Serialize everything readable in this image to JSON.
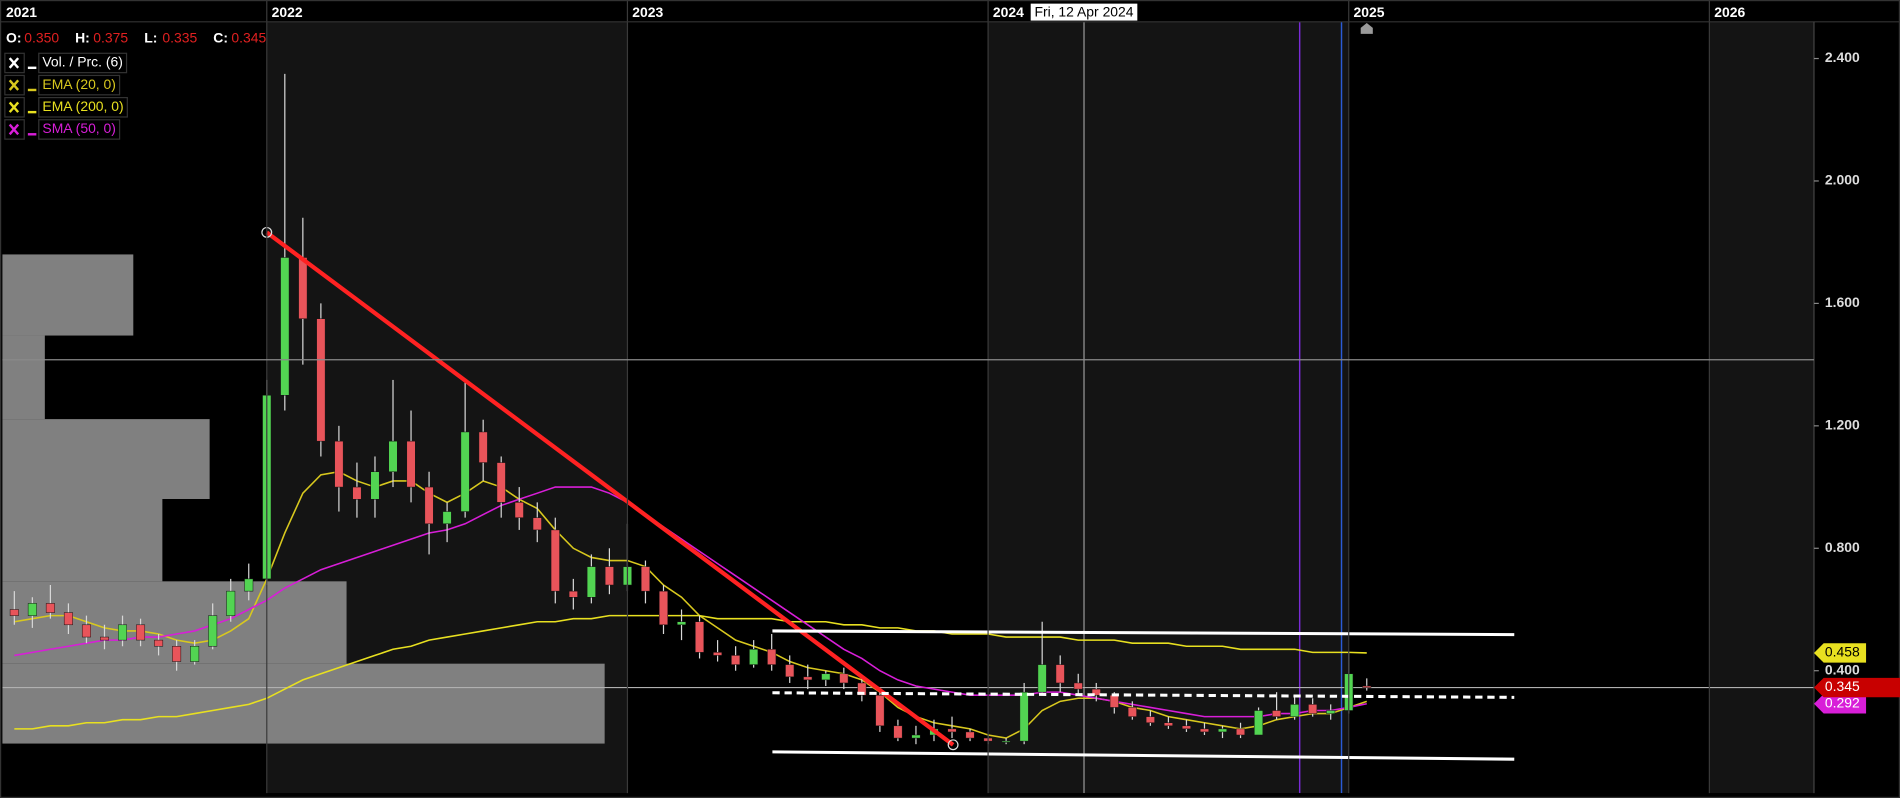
{
  "chart_data": {
    "type": "candlestick",
    "ohlc_header": [
      {
        "name": "O:",
        "text": "0.350"
      },
      {
        "name": "H:",
        "text": "0.375"
      },
      {
        "name": "L:",
        "text": "0.335"
      },
      {
        "name": "C:",
        "text": "0.345"
      }
    ],
    "x": [
      2021.3,
      2021.35,
      2021.4,
      2021.45,
      2021.5,
      2021.55,
      2021.6,
      2021.65,
      2021.7,
      2021.75,
      2021.8,
      2021.85,
      2021.9,
      2021.95,
      2022.0,
      2022.05,
      2022.1,
      2022.15,
      2022.2,
      2022.25,
      2022.3,
      2022.35,
      2022.4,
      2022.45,
      2022.5,
      2022.55,
      2022.6,
      2022.65,
      2022.7,
      2022.75,
      2022.8,
      2022.85,
      2022.9,
      2022.95,
      2023.0,
      2023.05,
      2023.1,
      2023.15,
      2023.2,
      2023.25,
      2023.3,
      2023.35,
      2023.4,
      2023.45,
      2023.5,
      2023.55,
      2023.6,
      2023.65,
      2023.7,
      2023.75,
      2023.8,
      2023.85,
      2023.9,
      2023.95,
      2024.0,
      2024.05,
      2024.1,
      2024.15,
      2024.2,
      2024.25,
      2024.3,
      2024.35,
      2024.4,
      2024.45,
      2024.5,
      2024.55,
      2024.6,
      2024.65,
      2024.7,
      2024.75,
      2024.8,
      2024.85,
      2024.9,
      2024.95,
      2025.0,
      2025.05
    ],
    "open": [
      0.6,
      0.58,
      0.62,
      0.59,
      0.55,
      0.51,
      0.5,
      0.55,
      0.5,
      0.48,
      0.43,
      0.48,
      0.58,
      0.66,
      0.7,
      1.3,
      1.75,
      1.55,
      1.15,
      1.0,
      0.96,
      1.05,
      1.15,
      1.0,
      0.88,
      0.92,
      1.18,
      1.08,
      0.95,
      0.9,
      0.86,
      0.66,
      0.64,
      0.74,
      0.68,
      0.74,
      0.66,
      0.55,
      0.56,
      0.46,
      0.45,
      0.42,
      0.47,
      0.42,
      0.38,
      0.37,
      0.39,
      0.36,
      0.32,
      0.22,
      0.18,
      0.19,
      0.21,
      0.2,
      0.18,
      0.17,
      0.17,
      0.33,
      0.42,
      0.36,
      0.34,
      0.32,
      0.28,
      0.25,
      0.23,
      0.22,
      0.21,
      0.2,
      0.21,
      0.19,
      0.27,
      0.25,
      0.29,
      0.26,
      0.27,
      0.35
    ],
    "high": [
      0.66,
      0.64,
      0.68,
      0.62,
      0.58,
      0.55,
      0.58,
      0.57,
      0.52,
      0.5,
      0.5,
      0.62,
      0.7,
      0.75,
      1.35,
      2.35,
      1.88,
      1.6,
      1.2,
      1.08,
      1.1,
      1.35,
      1.25,
      1.05,
      0.95,
      1.35,
      1.22,
      1.1,
      1.0,
      0.95,
      0.9,
      0.7,
      0.78,
      0.8,
      0.88,
      0.76,
      0.68,
      0.6,
      0.58,
      0.5,
      0.48,
      0.5,
      0.52,
      0.45,
      0.42,
      0.4,
      0.41,
      0.38,
      0.34,
      0.24,
      0.22,
      0.24,
      0.25,
      0.21,
      0.19,
      0.18,
      0.36,
      0.56,
      0.45,
      0.39,
      0.36,
      0.33,
      0.3,
      0.27,
      0.25,
      0.24,
      0.23,
      0.22,
      0.23,
      0.28,
      0.33,
      0.32,
      0.31,
      0.29,
      0.46,
      0.375
    ],
    "low": [
      0.55,
      0.54,
      0.57,
      0.52,
      0.49,
      0.47,
      0.48,
      0.48,
      0.45,
      0.4,
      0.42,
      0.47,
      0.56,
      0.63,
      0.68,
      1.25,
      1.4,
      1.1,
      0.92,
      0.9,
      0.9,
      1.0,
      0.95,
      0.78,
      0.82,
      0.9,
      1.02,
      0.9,
      0.86,
      0.82,
      0.62,
      0.6,
      0.62,
      0.65,
      0.66,
      0.62,
      0.52,
      0.5,
      0.44,
      0.43,
      0.4,
      0.41,
      0.4,
      0.36,
      0.34,
      0.35,
      0.34,
      0.3,
      0.2,
      0.17,
      0.16,
      0.17,
      0.18,
      0.17,
      0.16,
      0.16,
      0.16,
      0.32,
      0.33,
      0.32,
      0.3,
      0.26,
      0.24,
      0.22,
      0.21,
      0.2,
      0.19,
      0.18,
      0.18,
      0.19,
      0.24,
      0.24,
      0.25,
      0.24,
      0.26,
      0.335
    ],
    "close": [
      0.58,
      0.62,
      0.59,
      0.55,
      0.51,
      0.5,
      0.55,
      0.5,
      0.48,
      0.43,
      0.48,
      0.58,
      0.66,
      0.7,
      1.3,
      1.75,
      1.55,
      1.15,
      1.0,
      0.96,
      1.05,
      1.15,
      1.0,
      0.88,
      0.92,
      1.18,
      1.08,
      0.95,
      0.9,
      0.86,
      0.66,
      0.64,
      0.74,
      0.68,
      0.74,
      0.66,
      0.55,
      0.56,
      0.46,
      0.45,
      0.42,
      0.47,
      0.42,
      0.38,
      0.37,
      0.39,
      0.36,
      0.32,
      0.22,
      0.18,
      0.19,
      0.21,
      0.2,
      0.18,
      0.17,
      0.17,
      0.33,
      0.42,
      0.36,
      0.34,
      0.32,
      0.28,
      0.25,
      0.23,
      0.22,
      0.21,
      0.2,
      0.21,
      0.19,
      0.27,
      0.25,
      0.29,
      0.26,
      0.27,
      0.39,
      0.345
    ],
    "up_color": "#52d452",
    "down_color": "#e8545a",
    "wick_color": "#d8d8d8",
    "price_tag_color": "#c80000",
    "series": [
      {
        "name": "EMA (20, 0)",
        "color": "#d8c81e",
        "last_value_tag": false,
        "tag_text_color": "#000000",
        "values": [
          0.56,
          0.57,
          0.58,
          0.58,
          0.56,
          0.54,
          0.53,
          0.53,
          0.52,
          0.5,
          0.49,
          0.5,
          0.53,
          0.57,
          0.7,
          0.85,
          0.98,
          1.04,
          1.05,
          1.02,
          1.0,
          1.02,
          1.02,
          0.98,
          0.95,
          0.98,
          1.02,
          1.0,
          0.96,
          0.93,
          0.86,
          0.8,
          0.77,
          0.76,
          0.76,
          0.74,
          0.68,
          0.64,
          0.58,
          0.54,
          0.5,
          0.48,
          0.46,
          0.43,
          0.41,
          0.4,
          0.39,
          0.37,
          0.33,
          0.28,
          0.25,
          0.23,
          0.22,
          0.21,
          0.19,
          0.18,
          0.21,
          0.27,
          0.3,
          0.31,
          0.31,
          0.3,
          0.28,
          0.27,
          0.25,
          0.24,
          0.23,
          0.22,
          0.21,
          0.22,
          0.24,
          0.25,
          0.26,
          0.26,
          0.28,
          0.3
        ]
      },
      {
        "name": "EMA (200, 0)",
        "color": "#e8e020",
        "last_value_tag": true,
        "tag_text_color": "#000000",
        "values": [
          0.21,
          0.21,
          0.22,
          0.22,
          0.23,
          0.23,
          0.24,
          0.24,
          0.25,
          0.25,
          0.26,
          0.27,
          0.28,
          0.29,
          0.31,
          0.34,
          0.37,
          0.39,
          0.41,
          0.43,
          0.45,
          0.47,
          0.48,
          0.5,
          0.51,
          0.52,
          0.53,
          0.54,
          0.55,
          0.56,
          0.56,
          0.57,
          0.57,
          0.58,
          0.58,
          0.58,
          0.58,
          0.58,
          0.58,
          0.57,
          0.57,
          0.57,
          0.57,
          0.56,
          0.56,
          0.56,
          0.55,
          0.55,
          0.54,
          0.54,
          0.53,
          0.53,
          0.52,
          0.52,
          0.52,
          0.51,
          0.51,
          0.51,
          0.51,
          0.5,
          0.5,
          0.5,
          0.49,
          0.49,
          0.49,
          0.48,
          0.48,
          0.48,
          0.47,
          0.47,
          0.47,
          0.47,
          0.46,
          0.46,
          0.46,
          0.458
        ]
      },
      {
        "name": "SMA (50, 0)",
        "color": "#d81ed8",
        "last_value_tag": true,
        "tag_text_color": "#ffffff",
        "values": [
          0.45,
          0.46,
          0.47,
          0.48,
          0.49,
          0.5,
          0.5,
          0.51,
          0.51,
          0.52,
          0.53,
          0.55,
          0.57,
          0.6,
          0.63,
          0.67,
          0.7,
          0.73,
          0.75,
          0.77,
          0.79,
          0.81,
          0.83,
          0.85,
          0.86,
          0.88,
          0.91,
          0.94,
          0.96,
          0.98,
          1.0,
          1.0,
          1.0,
          0.98,
          0.95,
          0.91,
          0.87,
          0.83,
          0.79,
          0.75,
          0.71,
          0.67,
          0.63,
          0.59,
          0.55,
          0.51,
          0.47,
          0.44,
          0.4,
          0.37,
          0.35,
          0.34,
          0.33,
          0.32,
          0.32,
          0.32,
          0.32,
          0.33,
          0.33,
          0.32,
          0.31,
          0.3,
          0.29,
          0.28,
          0.27,
          0.26,
          0.25,
          0.25,
          0.25,
          0.25,
          0.26,
          0.26,
          0.27,
          0.27,
          0.28,
          0.292
        ]
      }
    ],
    "volume_profile": {
      "name": "Vol. / Prc. (6)",
      "color": "#808080",
      "bins": [
        0.162,
        0.423,
        0.692,
        0.961,
        1.222,
        1.495,
        1.76
      ],
      "volumes": [
        499,
        286,
        134,
        173,
        37,
        110
      ]
    },
    "xlim": [
      2021.267,
      2026.29
    ],
    "xticks": [
      2022,
      2023,
      2024,
      2025,
      2026
    ],
    "x_start_label": "2021",
    "ylim": [
      0,
      2.52
    ],
    "yticks": [
      {
        "value": 0.4,
        "label": "0.400"
      },
      {
        "value": 0.8,
        "label": "0.800"
      },
      {
        "value": 1.2,
        "label": "1.200"
      },
      {
        "value": 1.6,
        "label": "1.600"
      },
      {
        "value": 2.0,
        "label": "2.000"
      },
      {
        "value": 2.4,
        "label": "2.400"
      }
    ],
    "grid": false,
    "crosshair": {
      "x": 2024.266,
      "y": 1.416,
      "label": "Fri, 12 Apr 2024"
    },
    "vertical_markers": [
      {
        "x": 2024.864,
        "color": "#7a2bd6"
      },
      {
        "x": 2024.98,
        "color": "#2a5bd6"
      }
    ],
    "drawings": [
      {
        "color": "#ff2222",
        "width": 3.5,
        "dashed": false,
        "endpoints": true,
        "points": [
          [
            2022.0,
            1.832
          ],
          [
            2023.903,
            0.158
          ]
        ]
      },
      {
        "color": "#ffffff",
        "width": 2.5,
        "dashed": false,
        "endpoints": false,
        "points": [
          [
            2023.402,
            0.53
          ],
          [
            2025.459,
            0.518
          ]
        ]
      },
      {
        "color": "#ffffff",
        "width": 2.5,
        "dashed": true,
        "endpoints": false,
        "points": [
          [
            2023.402,
            0.328
          ],
          [
            2025.459,
            0.313
          ]
        ]
      },
      {
        "color": "#ffffff",
        "width": 2.5,
        "dashed": false,
        "endpoints": false,
        "points": [
          [
            2023.402,
            0.135
          ],
          [
            2025.459,
            0.111
          ]
        ]
      }
    ]
  }
}
